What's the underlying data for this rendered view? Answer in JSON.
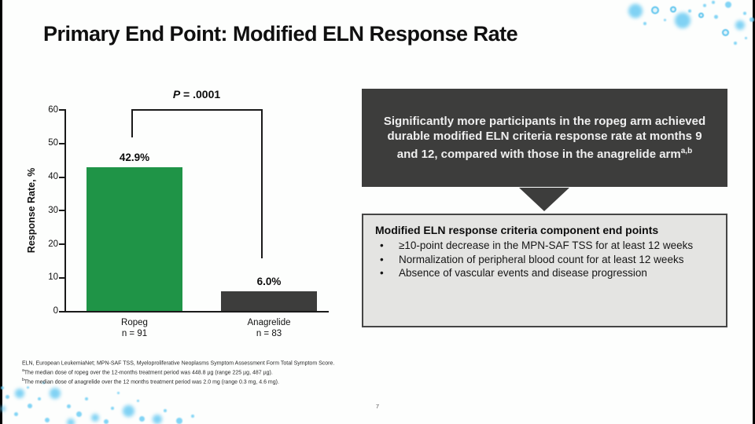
{
  "slide": {
    "title": "Primary End Point: Modified ELN Response Rate",
    "page_number": "7"
  },
  "chart_data": {
    "type": "bar",
    "ylabel": "Response Rate, %",
    "ylim": [
      0,
      60
    ],
    "yticks": [
      0,
      10,
      20,
      30,
      40,
      50,
      60
    ],
    "grid": false,
    "annotation_p_label": "P",
    "annotation_p_value": " = .0001",
    "bars": [
      {
        "label": "Ropeg",
        "sublabel": "n = 91",
        "value": 42.9,
        "display": "42.9%",
        "color": "#1f9447"
      },
      {
        "label": "Anagrelide",
        "sublabel": "n = 83",
        "value": 6.0,
        "display": "6.0%",
        "color": "#3d3d3c"
      }
    ]
  },
  "insight_box": {
    "text": "Significantly more participants in the ropeg arm achieved durable modified ELN criteria response rate at months 9 and 12, compared with those in the anagrelide arm",
    "superscript": "a,b"
  },
  "endpoints_box": {
    "title": "Modified ELN response criteria component end points",
    "bullets": [
      "≥10-point decrease in the MPN-SAF TSS for at least 12 weeks",
      "Normalization of peripheral blood count for at least 12 weeks",
      "Absence of vascular events and disease progression"
    ]
  },
  "footnotes": [
    {
      "sup": "",
      "text": "ELN, European LeukemiaNet; MPN-SAF TSS, Myeloproliferative Neoplasms Symptom Assessment Form Total Symptom Score."
    },
    {
      "sup": "a",
      "text": "The median dose of ropeg over the 12-months treatment period was 448.8 µg (range 225 µg, 487 µg)."
    },
    {
      "sup": "b",
      "text": "The median dose of anagrelide over the 12 months treatment period was 2.0 mg (range 0.3 mg, 4.6 mg)."
    }
  ],
  "colors": {
    "ropeg_green": "#1f9447",
    "anagrelide_gray": "#3d3d3c",
    "insight_box_bg": "#3d3d3c",
    "endpoints_box_bg": "#e4e4e2",
    "bubble_blue": "#5ec6f0"
  }
}
